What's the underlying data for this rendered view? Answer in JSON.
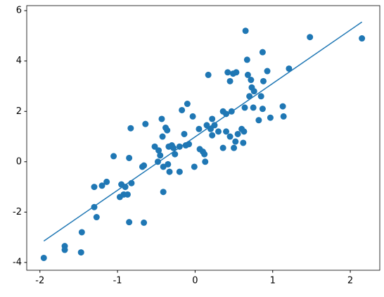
{
  "chart_data": {
    "type": "scatter",
    "xlim": [
      -2.17,
      2.38
    ],
    "xticks": [
      -2,
      -1,
      0,
      1,
      2
    ],
    "ylim": [
      -4.31,
      6.2
    ],
    "yticks": [
      -4,
      -2,
      0,
      2,
      4,
      6
    ],
    "series": [
      {
        "color": "#1f77b4",
        "x": [
          -1.95,
          -1.68,
          -1.68,
          -1.47,
          -1.46,
          -1.3,
          -1.3,
          -1.27,
          -1.2,
          -1.14,
          -1.05,
          -0.97,
          -0.95,
          -0.92,
          -0.9,
          -0.87,
          -0.85,
          -0.85,
          -0.83,
          -0.82,
          -0.68,
          -0.66,
          -0.66,
          -0.64,
          -0.52,
          -0.48,
          -0.47,
          -0.45,
          -0.43,
          -0.42,
          -0.41,
          -0.41,
          -0.38,
          -0.36,
          -0.35,
          -0.34,
          -0.33,
          -0.3,
          -0.28,
          -0.26,
          -0.2,
          -0.2,
          -0.17,
          -0.14,
          -0.12,
          -0.1,
          -0.08,
          -0.03,
          -0.01,
          0.05,
          0.06,
          0.1,
          0.12,
          0.13,
          0.15,
          0.17,
          0.2,
          0.22,
          0.22,
          0.25,
          0.3,
          0.36,
          0.36,
          0.4,
          0.4,
          0.42,
          0.45,
          0.45,
          0.47,
          0.49,
          0.5,
          0.52,
          0.53,
          0.55,
          0.6,
          0.62,
          0.63,
          0.64,
          0.65,
          0.67,
          0.68,
          0.7,
          0.72,
          0.73,
          0.75,
          0.76,
          0.82,
          0.85,
          0.87,
          0.87,
          0.88,
          0.93,
          0.97,
          1.13,
          1.14,
          1.21,
          1.48,
          2.15
        ],
        "values": [
          -3.82,
          -3.35,
          -3.5,
          -3.6,
          -2.8,
          -1.0,
          -1.8,
          -2.2,
          -0.95,
          -0.8,
          0.22,
          -1.4,
          -0.9,
          -1.3,
          -1.0,
          -1.3,
          -2.4,
          0.15,
          1.33,
          -0.85,
          -0.2,
          -0.15,
          -2.42,
          1.5,
          0.6,
          0.0,
          0.45,
          0.25,
          1.7,
          1.0,
          -0.2,
          -1.2,
          1.35,
          1.25,
          -0.1,
          0.6,
          -0.4,
          0.65,
          0.55,
          0.3,
          0.6,
          -0.4,
          2.05,
          1.1,
          0.65,
          2.3,
          0.7,
          1.8,
          -0.2,
          1.3,
          0.5,
          0.4,
          0.3,
          0.0,
          1.45,
          3.45,
          1.3,
          1.7,
          1.05,
          1.45,
          1.2,
          0.55,
          2.0,
          1.9,
          1.2,
          3.55,
          3.2,
          1.0,
          2.0,
          3.5,
          0.55,
          0.8,
          3.55,
          1.1,
          1.3,
          0.75,
          1.2,
          2.15,
          5.2,
          4.05,
          3.45,
          2.6,
          3.25,
          2.95,
          2.15,
          2.8,
          1.65,
          2.6,
          2.1,
          4.35,
          3.2,
          3.6,
          1.75,
          2.2,
          1.8,
          3.7,
          4.95,
          4.9
        ]
      }
    ],
    "fit_line": {
      "color": "#1f77b4",
      "x": [
        -1.95,
        2.15
      ],
      "values": [
        -3.15,
        5.55
      ]
    }
  }
}
